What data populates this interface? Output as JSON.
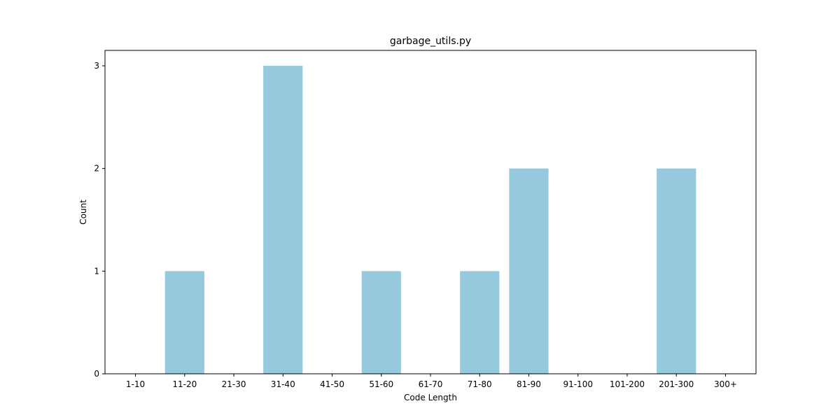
{
  "chart_data": {
    "type": "bar",
    "title": "garbage_utils.py",
    "xlabel": "Code Length",
    "ylabel": "Count",
    "categories": [
      "1-10",
      "11-20",
      "21-30",
      "31-40",
      "41-50",
      "51-60",
      "61-70",
      "71-80",
      "81-90",
      "91-100",
      "101-200",
      "201-300",
      "300+"
    ],
    "values": [
      0,
      1,
      0,
      3,
      0,
      1,
      0,
      1,
      2,
      0,
      0,
      2,
      0
    ],
    "yticks": [
      0,
      1,
      2,
      3
    ],
    "ylim": [
      0,
      3.15
    ],
    "bar_color": "#96c9de",
    "grid": false,
    "legend": "none"
  }
}
